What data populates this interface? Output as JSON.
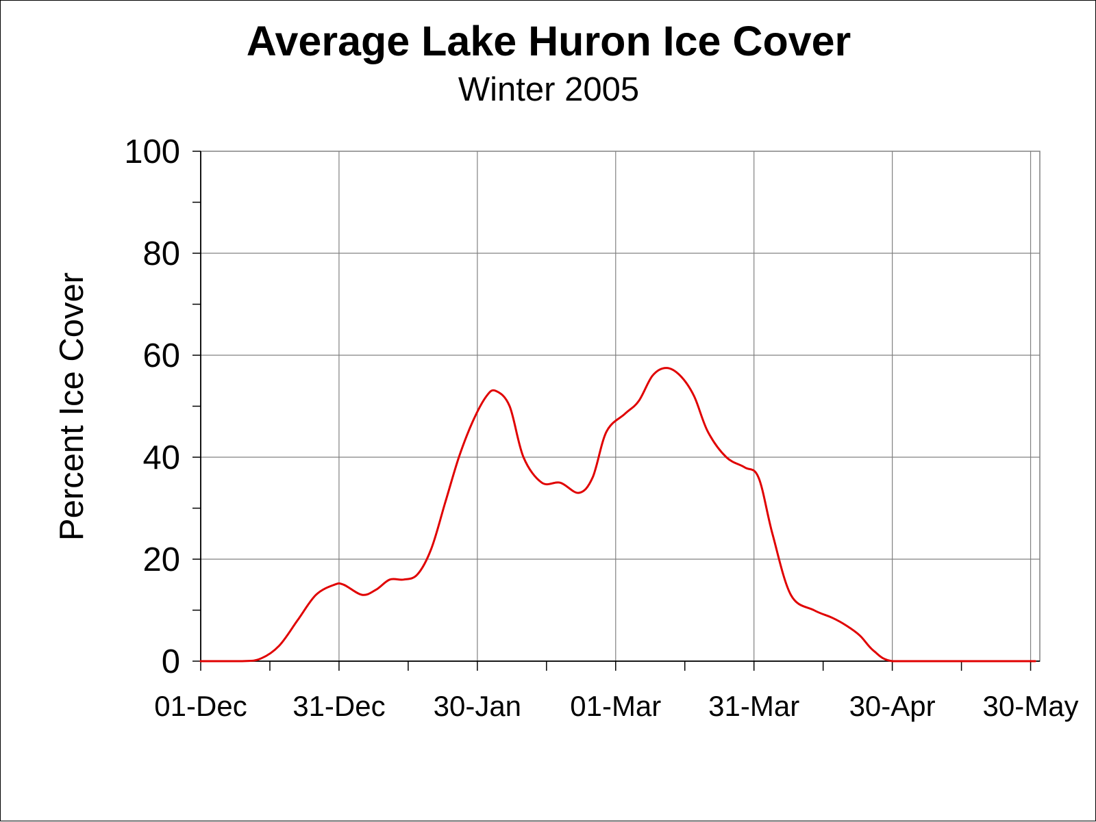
{
  "chart_data": {
    "type": "line",
    "title": "Average Lake Huron Ice Cover",
    "subtitle": "Winter 2005",
    "xlabel": "",
    "ylabel": "Percent Ice Cover",
    "ylim": [
      0,
      100
    ],
    "yticks": [
      0,
      20,
      40,
      60,
      80,
      100
    ],
    "y_minor_step": 10,
    "xlim": [
      "2004-12-01",
      "2005-06-01"
    ],
    "xticks": [
      {
        "date": "2004-12-01",
        "label": "01-Dec"
      },
      {
        "date": "2004-12-31",
        "label": "31-Dec"
      },
      {
        "date": "2005-01-30",
        "label": "30-Jan"
      },
      {
        "date": "2005-03-01",
        "label": "01-Mar"
      },
      {
        "date": "2005-03-31",
        "label": "31-Mar"
      },
      {
        "date": "2005-04-30",
        "label": "30-Apr"
      },
      {
        "date": "2005-05-30",
        "label": "30-May"
      }
    ],
    "grid": true,
    "legend": "none",
    "series": [
      {
        "color": "#e00000",
        "x": [
          "2004-12-01",
          "2004-12-10",
          "2004-12-14",
          "2004-12-18",
          "2004-12-22",
          "2004-12-26",
          "2004-12-30",
          "2005-01-01",
          "2005-01-05",
          "2005-01-08",
          "2005-01-11",
          "2005-01-14",
          "2005-01-17",
          "2005-01-20",
          "2005-01-23",
          "2005-01-26",
          "2005-01-29",
          "2005-02-01",
          "2005-02-03",
          "2005-02-06",
          "2005-02-09",
          "2005-02-13",
          "2005-02-17",
          "2005-02-21",
          "2005-02-24",
          "2005-02-27",
          "2005-03-03",
          "2005-03-06",
          "2005-03-09",
          "2005-03-12",
          "2005-03-15",
          "2005-03-18",
          "2005-03-21",
          "2005-03-25",
          "2005-03-29",
          "2005-04-01",
          "2005-04-04",
          "2005-04-08",
          "2005-04-13",
          "2005-04-17",
          "2005-04-20",
          "2005-04-23",
          "2005-04-26",
          "2005-04-30",
          "2005-05-10",
          "2005-05-20",
          "2005-05-31"
        ],
        "y": [
          0,
          0,
          0.5,
          3,
          8,
          13,
          15,
          15,
          13,
          14,
          16,
          16,
          17,
          22,
          31,
          40,
          47,
          52,
          53,
          50,
          40,
          35,
          35,
          33,
          36,
          45,
          48.5,
          51,
          56,
          57.5,
          56,
          52,
          45,
          40,
          38,
          36,
          25,
          13,
          10,
          8.5,
          7,
          5,
          2,
          0,
          0,
          0,
          0
        ]
      }
    ]
  }
}
